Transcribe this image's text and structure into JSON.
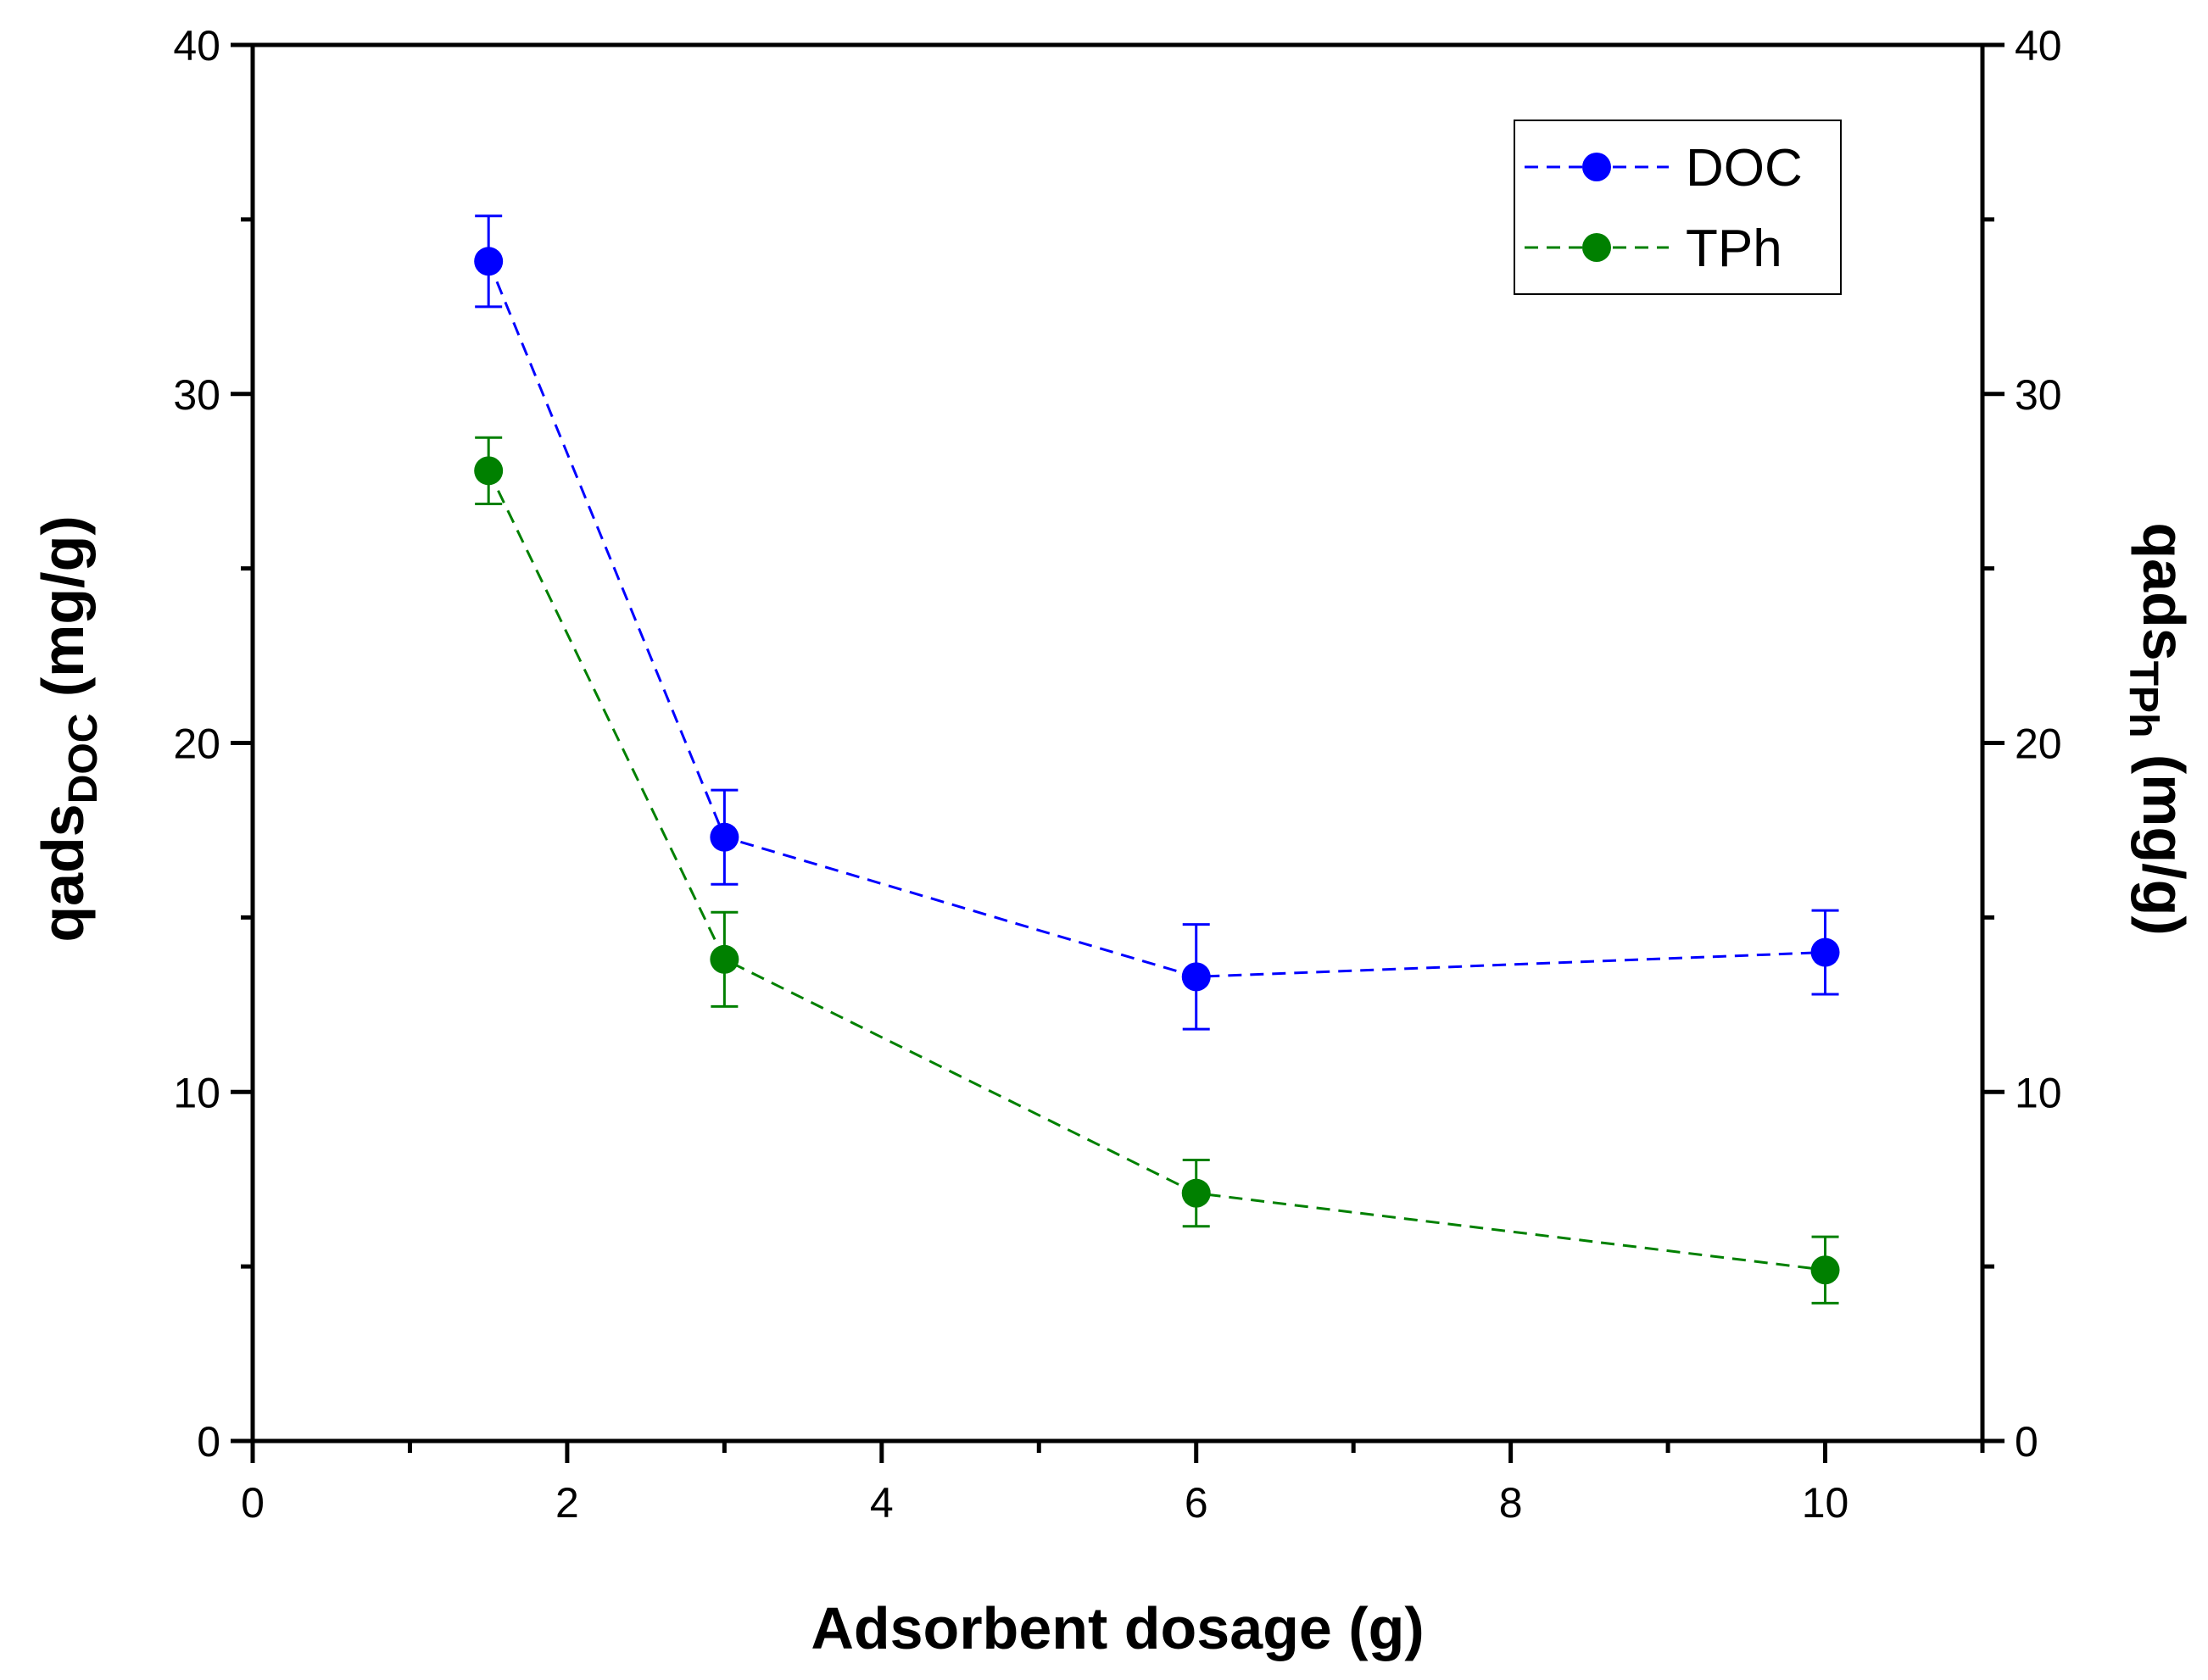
{
  "chart_data": {
    "type": "scatter",
    "title": "",
    "xlabel": "Adsorbent dosage (g)",
    "ylabel_left": {
      "base": "qads",
      "sub": "DOC",
      "suffix": " (mg/g)"
    },
    "ylabel_right": {
      "base": "qads",
      "sub": "TPh",
      "suffix": " (mg/g)"
    },
    "xlim": [
      0,
      11
    ],
    "ylim": [
      0,
      40
    ],
    "xticks": [
      0,
      2,
      4,
      6,
      8,
      10
    ],
    "xticks_minor": [
      1,
      3,
      5,
      7,
      9,
      11
    ],
    "yticks": [
      0,
      10,
      20,
      30,
      40
    ],
    "yticks_minor": [
      5,
      15,
      25,
      35
    ],
    "grid": false,
    "legend_position": "top-right",
    "series": [
      {
        "name": "DOC",
        "color": "#0000ff",
        "line_style": "dashed",
        "x": [
          1.5,
          3,
          6,
          10
        ],
        "y": [
          33.8,
          17.3,
          13.3,
          14.0
        ],
        "yerr": [
          1.3,
          1.35,
          1.5,
          1.2
        ]
      },
      {
        "name": "TPh",
        "color": "#008000",
        "line_style": "dashed",
        "x": [
          1.5,
          3,
          6,
          10
        ],
        "y": [
          27.8,
          13.8,
          7.1,
          4.9
        ],
        "yerr": [
          0.95,
          1.35,
          0.95,
          0.95
        ]
      }
    ]
  }
}
